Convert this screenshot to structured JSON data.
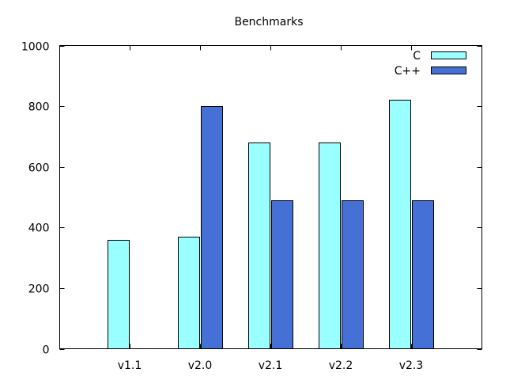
{
  "chart_data": {
    "type": "bar",
    "title": "Benchmarks",
    "xlabel": "",
    "ylabel": "",
    "categories": [
      "v1.1",
      "v2.0",
      "v2.1",
      "v2.2",
      "v2.3"
    ],
    "series": [
      {
        "name": "C",
        "values": [
          360,
          370,
          680,
          680,
          820
        ],
        "color": "#99ffff"
      },
      {
        "name": "C++",
        "values": [
          null,
          800,
          490,
          490,
          490
        ],
        "color": "#4570d6"
      }
    ],
    "ylim": [
      0,
      1000
    ],
    "yticks": [
      0,
      200,
      400,
      600,
      800,
      1000
    ],
    "grid": false,
    "legend": "top-right"
  }
}
